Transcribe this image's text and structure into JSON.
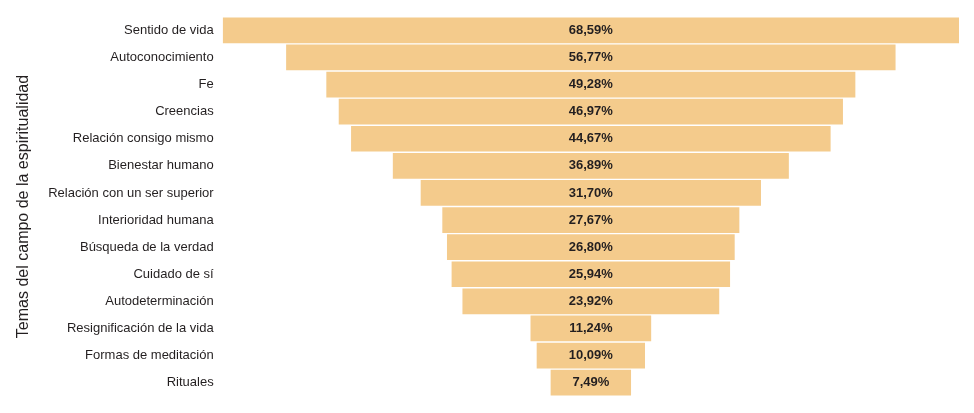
{
  "chart_data": {
    "type": "funnel",
    "orientation": "horizontal",
    "ylabel": "Temas del campo de la espiritualidad",
    "categories": [
      "Sentido de vida",
      "Autoconocimiento",
      "Fe",
      "Creencias",
      "Relación consigo mismo",
      "Bienestar humano",
      "Relación con un ser superior",
      "Interioridad humana",
      "Búsqueda de la verdad",
      "Cuidado de sí",
      "Autodeterminación",
      "Resignificación de la vida",
      "Formas de meditación",
      "Rituales"
    ],
    "values": [
      68.59,
      56.77,
      49.28,
      46.97,
      44.67,
      36.89,
      31.7,
      27.67,
      26.8,
      25.94,
      23.92,
      11.24,
      10.09,
      7.49
    ],
    "value_labels": [
      "68,59%",
      "56,77%",
      "49,28%",
      "46,97%",
      "44,67%",
      "36,89%",
      "31,70%",
      "27,67%",
      "26,80%",
      "25,94%",
      "23,92%",
      "11,24%",
      "10,09%",
      "7,49%"
    ],
    "color": "#f4cb8c",
    "data_labels": true,
    "tick_labels": "y",
    "grid": false
  }
}
